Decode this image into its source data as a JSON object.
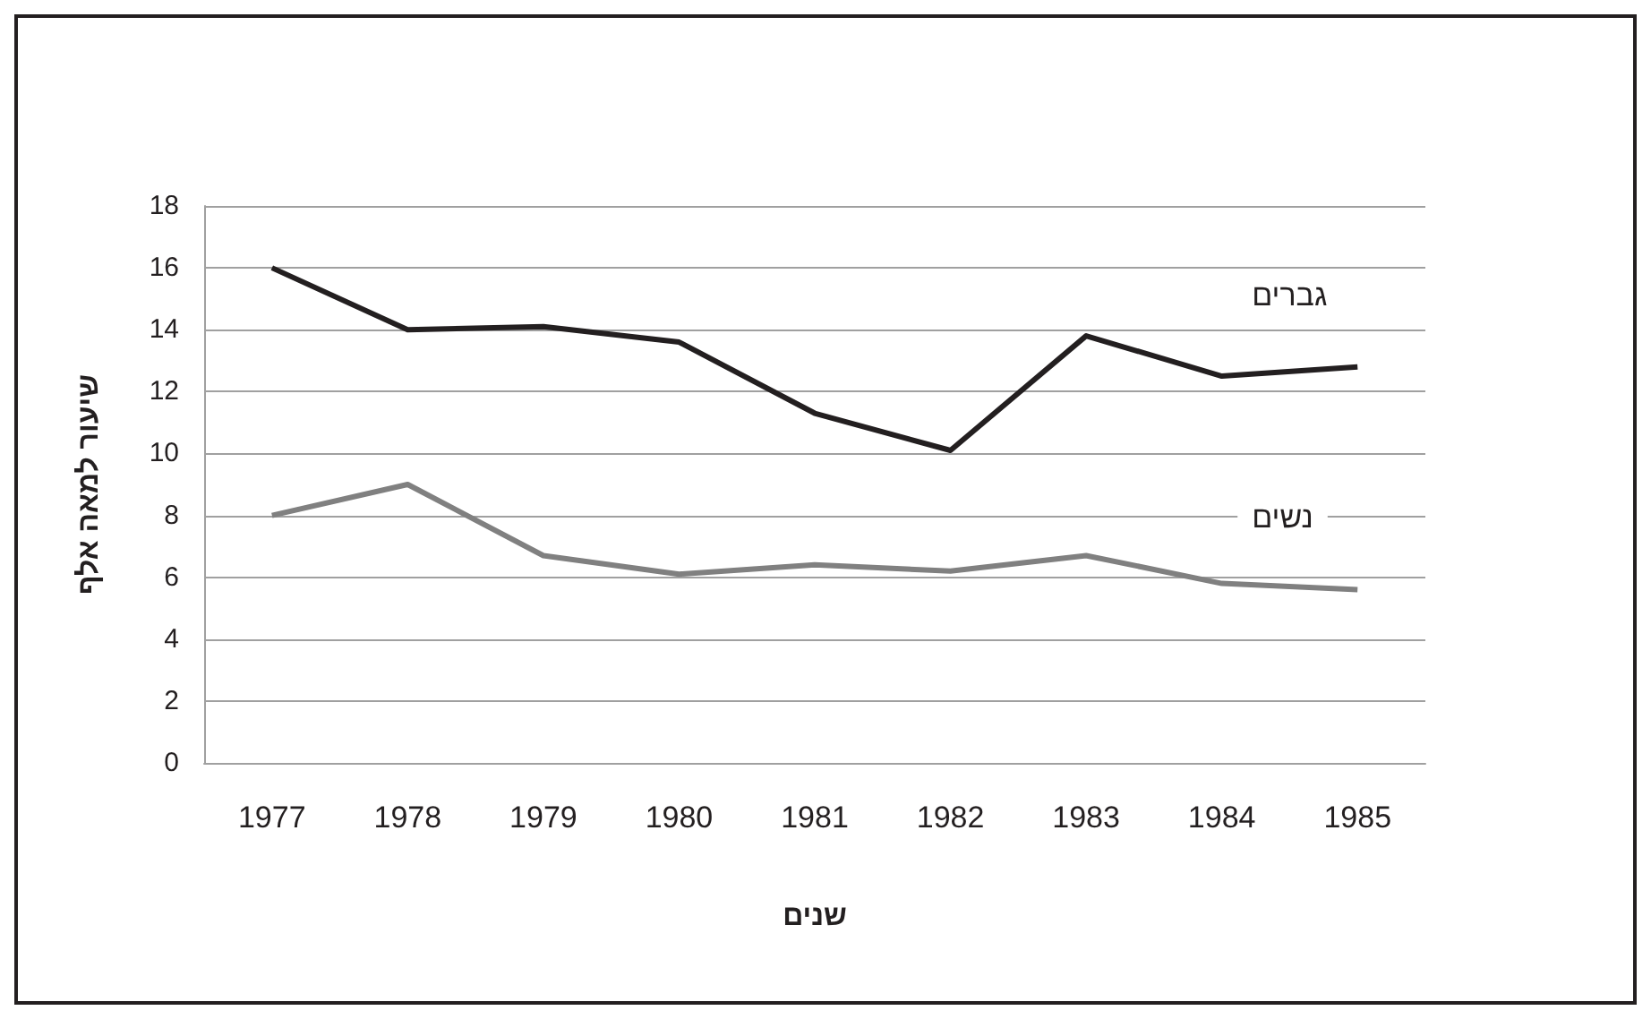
{
  "chart_data": {
    "type": "line",
    "xlabel": "שנים",
    "ylabel": "שיעור למאה אלף",
    "categories": [
      "1977",
      "1978",
      "1979",
      "1980",
      "1981",
      "1982",
      "1983",
      "1984",
      "1985"
    ],
    "series": [
      {
        "name": "גברים",
        "color": "#231f20",
        "values": [
          16,
          14,
          14.1,
          13.6,
          11.3,
          10.1,
          13.8,
          12.5,
          12.8
        ]
      },
      {
        "name": "נשים",
        "color": "#808080",
        "values": [
          8,
          9,
          6.7,
          6.1,
          6.4,
          6.2,
          6.7,
          5.8,
          5.6
        ]
      }
    ],
    "ylim": [
      0,
      18
    ],
    "yticks": [
      0,
      2,
      4,
      6,
      8,
      10,
      12,
      14,
      16,
      18
    ],
    "grid": "y",
    "legend": false,
    "marker": "none",
    "line_style": "solid"
  }
}
